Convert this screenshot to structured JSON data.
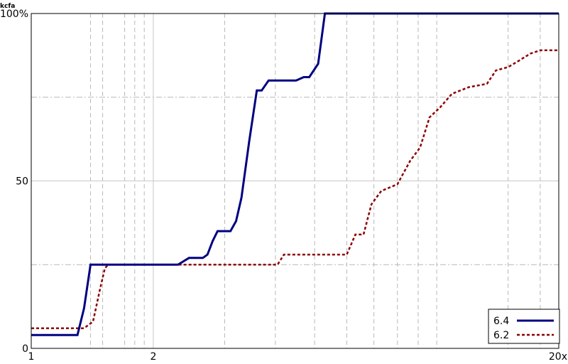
{
  "chart_data": {
    "type": "line",
    "title": "kcfa",
    "x_scale": "log",
    "xlim": [
      1,
      20
    ],
    "ylim": [
      0,
      100
    ],
    "grid": true,
    "legend_position": "bottom-right",
    "x_ticks": [
      {
        "value": 1,
        "label": "1"
      },
      {
        "value": 2,
        "label": "2"
      },
      {
        "value": 20,
        "label": "20x"
      }
    ],
    "y_ticks": [
      {
        "value": 0,
        "label": "0"
      },
      {
        "value": 50,
        "label": "50"
      },
      {
        "value": 100,
        "label": "100%"
      }
    ],
    "x_minor_gridlines": [
      1.4,
      1.5,
      1.7,
      1.8,
      1.9,
      3,
      4,
      5,
      6,
      7,
      8,
      9,
      10,
      15,
      18
    ],
    "y_minor_gridlines": [
      25,
      75
    ],
    "series": [
      {
        "name": "6.4",
        "color": "#000080",
        "dash": "solid",
        "points": [
          [
            1.0,
            4
          ],
          [
            1.3,
            4
          ],
          [
            1.35,
            12
          ],
          [
            1.4,
            25
          ],
          [
            2.3,
            25
          ],
          [
            2.45,
            27
          ],
          [
            2.65,
            27
          ],
          [
            2.72,
            28
          ],
          [
            2.8,
            32
          ],
          [
            2.88,
            35
          ],
          [
            3.1,
            35
          ],
          [
            3.2,
            38
          ],
          [
            3.3,
            45
          ],
          [
            3.45,
            62
          ],
          [
            3.6,
            77
          ],
          [
            3.7,
            77
          ],
          [
            3.85,
            80
          ],
          [
            4.5,
            80
          ],
          [
            4.7,
            81
          ],
          [
            4.85,
            81
          ],
          [
            5.1,
            85
          ],
          [
            5.3,
            100
          ],
          [
            20.0,
            100
          ]
        ]
      },
      {
        "name": "6.2",
        "color": "#8b0000",
        "dash": "dashed",
        "points": [
          [
            1.0,
            6
          ],
          [
            1.35,
            6
          ],
          [
            1.42,
            8
          ],
          [
            1.48,
            18
          ],
          [
            1.52,
            24
          ],
          [
            1.55,
            25
          ],
          [
            4.05,
            25
          ],
          [
            4.2,
            28
          ],
          [
            6.0,
            28
          ],
          [
            6.3,
            34
          ],
          [
            6.6,
            34
          ],
          [
            6.9,
            43
          ],
          [
            7.3,
            47
          ],
          [
            8.0,
            49
          ],
          [
            8.6,
            56
          ],
          [
            9.1,
            60
          ],
          [
            9.6,
            69
          ],
          [
            10.2,
            72
          ],
          [
            10.9,
            76
          ],
          [
            12.0,
            78
          ],
          [
            13.3,
            79
          ],
          [
            14.0,
            83
          ],
          [
            15.0,
            84
          ],
          [
            16.0,
            86
          ],
          [
            17.0,
            88
          ],
          [
            18.0,
            89
          ],
          [
            20.0,
            89
          ]
        ]
      }
    ]
  }
}
